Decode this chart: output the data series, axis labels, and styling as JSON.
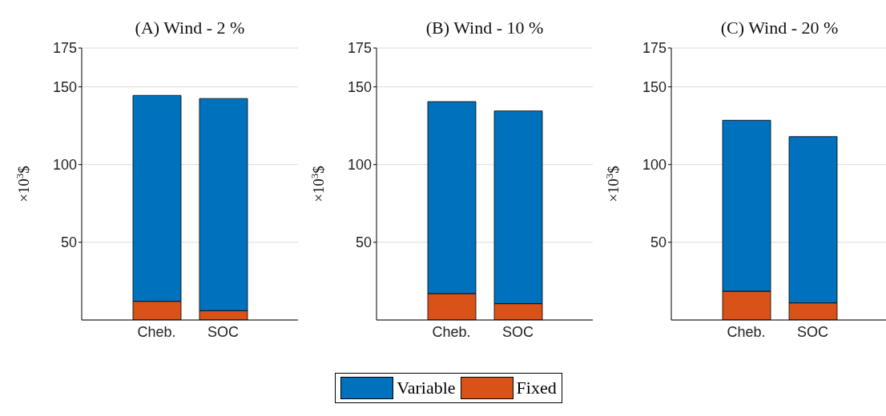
{
  "chart_data": [
    {
      "type": "bar",
      "title": "(A) Wind - 2 %",
      "ylabel": "×10$^{3}$$",
      "categories": [
        "Cheb.",
        "SOC"
      ],
      "stacked": true,
      "ylim": [
        0,
        175
      ],
      "yticks": [
        50,
        100,
        150,
        175
      ],
      "grid": true,
      "legend": false,
      "series": [
        {
          "color": "#d95319",
          "values": [
            12,
            6
          ]
        },
        {
          "color": "#0072bd",
          "values": [
            132.5,
            136.5
          ]
        }
      ]
    },
    {
      "type": "bar",
      "title": "(B) Wind - 10 %",
      "ylabel": "×10$^{3}$$",
      "categories": [
        "Cheb.",
        "SOC"
      ],
      "stacked": true,
      "ylim": [
        0,
        175
      ],
      "yticks": [
        50,
        100,
        150,
        175
      ],
      "grid": true,
      "legend": "bottom",
      "series": [
        {
          "name": "Fixed",
          "color": "#d95319",
          "values": [
            17,
            10.5
          ]
        },
        {
          "name": "Variable",
          "color": "#0072bd",
          "values": [
            123.5,
            124
          ]
        }
      ]
    },
    {
      "type": "bar",
      "title": "(C) Wind - 20 %",
      "ylabel": "×10$^{3}$$",
      "categories": [
        "Cheb.",
        "SOC"
      ],
      "stacked": true,
      "ylim": [
        0,
        175
      ],
      "yticks": [
        50,
        100,
        150,
        175
      ],
      "grid": true,
      "legend": false,
      "series": [
        {
          "color": "#d95319",
          "values": [
            18.5,
            11
          ]
        },
        {
          "color": "#0072bd",
          "values": [
            110,
            107
          ]
        }
      ]
    }
  ]
}
